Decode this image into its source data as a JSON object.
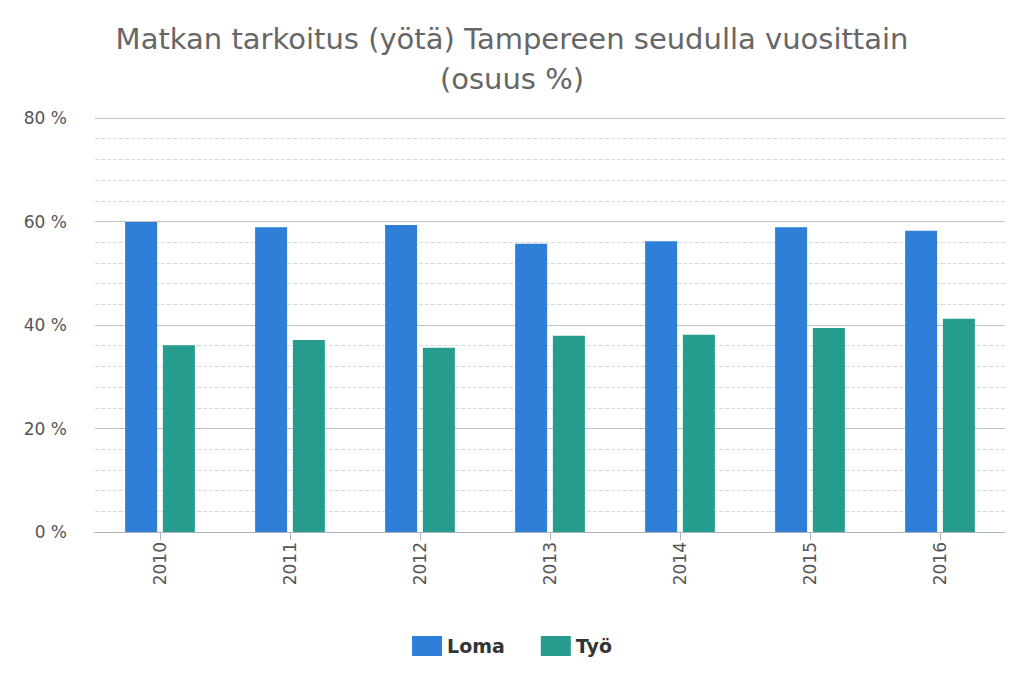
{
  "chart_data": {
    "type": "bar",
    "title": "Matkan tarkoitus (yötä) Tampereen seudulla vuosittain\n(osuus %)",
    "categories": [
      "2010",
      "2011",
      "2012",
      "2013",
      "2014",
      "2015",
      "2016"
    ],
    "series": [
      {
        "name": "Loma",
        "color": "#2f7ed8",
        "values": [
          59.9,
          58.9,
          59.3,
          55.7,
          56.2,
          58.9,
          58.2
        ]
      },
      {
        "name": "Työ",
        "color": "#269c8f",
        "values": [
          36.1,
          37.1,
          35.6,
          37.9,
          38.1,
          39.4,
          41.2
        ]
      }
    ],
    "ylim": [
      0,
      80
    ],
    "yticks": [
      {
        "value": 0,
        "label": "0 %"
      },
      {
        "value": 20,
        "label": "20 %"
      },
      {
        "value": 40,
        "label": "40 %"
      },
      {
        "value": 60,
        "label": "60 %"
      },
      {
        "value": 80,
        "label": "80 %"
      }
    ],
    "grid": true,
    "legend": "bottom"
  }
}
